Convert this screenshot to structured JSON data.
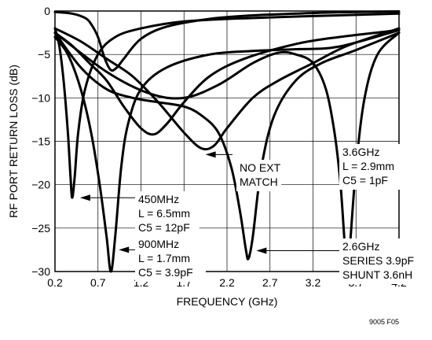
{
  "chart_data": {
    "type": "line",
    "xlabel": "FREQUENCY (GHz)",
    "ylabel": "RF PORT RETURN LOSS (dB)",
    "xlim": [
      0.2,
      4.2
    ],
    "ylim": [
      -30,
      0
    ],
    "x_ticks": [
      "0.2",
      "0.7",
      "1.2",
      "1.7",
      "2.2",
      "2.7",
      "3.2",
      "3.7",
      "4.2"
    ],
    "y_ticks": [
      "0",
      "-5",
      "-10",
      "-15",
      "-20",
      "-25",
      "-30"
    ],
    "grid": true,
    "figure_id": "9005 F05",
    "annotations": [
      {
        "lines": [
          "450MHz",
          "L = 6.5mm",
          "C5 = 12pF"
        ]
      },
      {
        "lines": [
          "900MHz",
          "L = 1.7mm",
          "C5 = 3.9pF"
        ]
      },
      {
        "lines": [
          "NO EXT",
          "MATCH"
        ]
      },
      {
        "lines": [
          "2.6GHz",
          "SERIES 3.9pF",
          "SHUNT 3.6nH"
        ]
      },
      {
        "lines": [
          "3.6GHz",
          "L = 2.9mm",
          "C5 = 1pF"
        ]
      }
    ],
    "series": [
      {
        "points": [
          [
            0.2,
            -0.1
          ],
          [
            0.4,
            -0.3
          ],
          [
            0.55,
            -0.8
          ],
          [
            0.62,
            -1.5
          ],
          [
            0.7,
            -3
          ],
          [
            0.78,
            -5.5
          ],
          [
            0.85,
            -6.8
          ],
          [
            0.92,
            -6.5
          ],
          [
            1.0,
            -5.5
          ],
          [
            1.2,
            -3.2
          ],
          [
            1.5,
            -1.8
          ],
          [
            2.0,
            -0.9
          ],
          [
            2.5,
            -0.5
          ],
          [
            3.0,
            -0.3
          ],
          [
            3.5,
            -0.15
          ],
          [
            4.2,
            -0.05
          ]
        ]
      },
      {
        "points": [
          [
            0.2,
            -2
          ],
          [
            0.25,
            -4
          ],
          [
            0.3,
            -8
          ],
          [
            0.35,
            -14
          ],
          [
            0.38,
            -19
          ],
          [
            0.4,
            -21.5
          ],
          [
            0.43,
            -19
          ],
          [
            0.47,
            -14
          ],
          [
            0.55,
            -9
          ],
          [
            0.7,
            -5
          ],
          [
            0.9,
            -3
          ],
          [
            1.2,
            -2
          ],
          [
            1.7,
            -1.2
          ],
          [
            2.5,
            -0.8
          ],
          [
            3.5,
            -0.5
          ],
          [
            4.2,
            -0.3
          ]
        ]
      },
      {
        "points": [
          [
            0.2,
            -3
          ],
          [
            0.35,
            -5
          ],
          [
            0.5,
            -9
          ],
          [
            0.62,
            -14
          ],
          [
            0.72,
            -20
          ],
          [
            0.8,
            -26
          ],
          [
            0.85,
            -30
          ],
          [
            0.9,
            -26
          ],
          [
            0.97,
            -18
          ],
          [
            1.05,
            -13
          ],
          [
            1.2,
            -9
          ],
          [
            1.5,
            -6.5
          ],
          [
            2.0,
            -5
          ],
          [
            2.5,
            -4.6
          ],
          [
            3.0,
            -4.4
          ],
          [
            3.5,
            -4.1
          ],
          [
            4.2,
            -2.2
          ]
        ]
      },
      {
        "points": [
          [
            0.2,
            -2.5
          ],
          [
            0.4,
            -4
          ],
          [
            0.6,
            -6
          ],
          [
            0.8,
            -8
          ],
          [
            1.0,
            -11
          ],
          [
            1.2,
            -13.5
          ],
          [
            1.35,
            -14.2
          ],
          [
            1.5,
            -13
          ],
          [
            1.7,
            -10.5
          ],
          [
            2.0,
            -7.5
          ],
          [
            2.4,
            -5.5
          ],
          [
            3.0,
            -3.8
          ],
          [
            3.5,
            -3
          ],
          [
            4.2,
            -2.2
          ]
        ]
      },
      {
        "points": [
          [
            0.2,
            -2
          ],
          [
            0.5,
            -3.5
          ],
          [
            0.8,
            -5.5
          ],
          [
            1.1,
            -7.5
          ],
          [
            1.4,
            -10.5
          ],
          [
            1.7,
            -14
          ],
          [
            1.9,
            -15.8
          ],
          [
            2.05,
            -15.5
          ],
          [
            2.2,
            -13.5
          ],
          [
            2.5,
            -10
          ],
          [
            2.8,
            -8
          ],
          [
            3.2,
            -6
          ],
          [
            3.6,
            -4
          ],
          [
            4.2,
            -2
          ]
        ]
      },
      {
        "points": [
          [
            0.2,
            -2.5
          ],
          [
            0.5,
            -6.5
          ],
          [
            0.8,
            -9
          ],
          [
            1.1,
            -10
          ],
          [
            1.4,
            -10.5
          ],
          [
            1.7,
            -11
          ],
          [
            1.9,
            -12
          ],
          [
            2.1,
            -14
          ],
          [
            2.25,
            -18
          ],
          [
            2.35,
            -23
          ],
          [
            2.42,
            -27.5
          ],
          [
            2.45,
            -28.5
          ],
          [
            2.5,
            -26
          ],
          [
            2.6,
            -18
          ],
          [
            2.75,
            -12
          ],
          [
            3.0,
            -8
          ],
          [
            3.3,
            -6
          ],
          [
            3.7,
            -4.5
          ],
          [
            4.2,
            -2.5
          ]
        ]
      },
      {
        "points": [
          [
            0.2,
            -2.5
          ],
          [
            0.8,
            -7
          ],
          [
            1.3,
            -9.5
          ],
          [
            1.7,
            -10
          ],
          [
            2.1,
            -8.5
          ],
          [
            2.5,
            -6
          ],
          [
            2.8,
            -4.8
          ],
          [
            3.0,
            -5
          ],
          [
            3.2,
            -6
          ],
          [
            3.35,
            -9
          ],
          [
            3.45,
            -14
          ],
          [
            3.52,
            -20
          ],
          [
            3.57,
            -27
          ],
          [
            3.6,
            -30
          ],
          [
            3.63,
            -27
          ],
          [
            3.7,
            -18
          ],
          [
            3.8,
            -10
          ],
          [
            3.95,
            -5
          ],
          [
            4.2,
            -2.5
          ]
        ]
      }
    ]
  }
}
